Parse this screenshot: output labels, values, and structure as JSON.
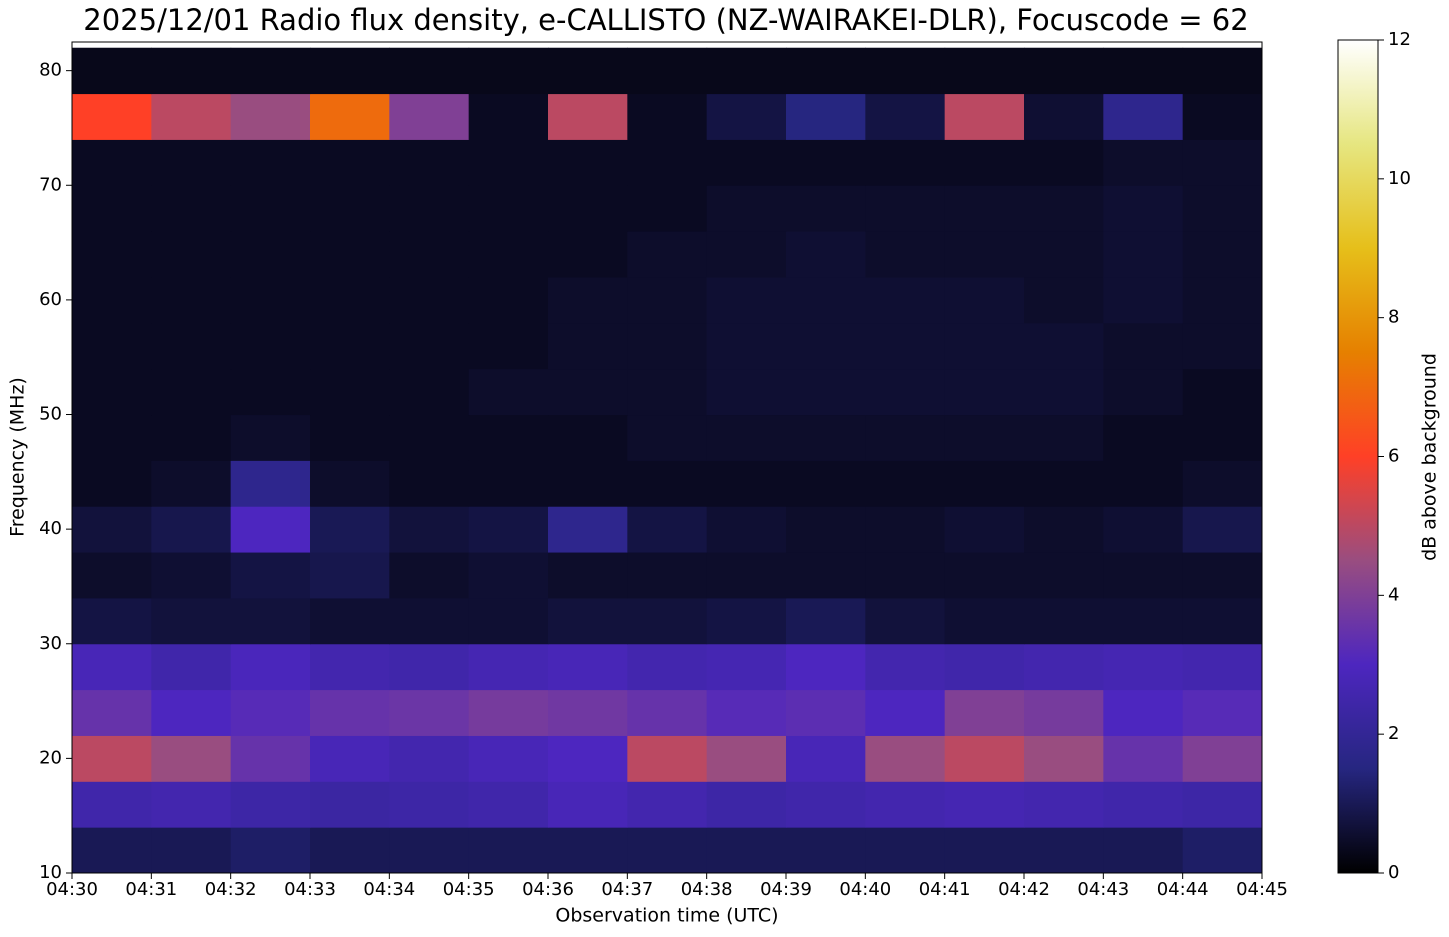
{
  "chart_data": {
    "type": "heatmap",
    "title": "2025/12/01 Radio flux density, e-CALLISTO (NZ-WAIRAKEI-DLR), Focuscode = 62",
    "xlabel": "Observation time (UTC)",
    "ylabel": "Frequency (MHz)",
    "colorbar_label": "dB above background",
    "x_bins": [
      "04:30",
      "04:31",
      "04:32",
      "04:33",
      "04:34",
      "04:35",
      "04:36",
      "04:37",
      "04:38",
      "04:39",
      "04:40",
      "04:41",
      "04:42",
      "04:43",
      "04:44",
      "04:45"
    ],
    "y_bins": [
      10,
      14,
      18,
      22,
      26,
      30,
      34,
      38,
      42,
      46,
      50,
      54,
      58,
      62,
      66,
      70,
      74,
      78,
      82
    ],
    "xlim": [
      "04:30",
      "04:45"
    ],
    "xticks": [
      "04:30",
      "04:31",
      "04:32",
      "04:33",
      "04:34",
      "04:35",
      "04:36",
      "04:37",
      "04:38",
      "04:39",
      "04:40",
      "04:41",
      "04:42",
      "04:43",
      "04:44",
      "04:45"
    ],
    "ylim": [
      10,
      82.5
    ],
    "yticks": [
      10,
      20,
      30,
      40,
      50,
      60,
      70,
      80
    ],
    "clim": [
      0,
      12
    ],
    "cticks": [
      0,
      2,
      4,
      6,
      8,
      10,
      12
    ],
    "colormap": "CMRmap",
    "z": [
      [
        1,
        1,
        1.2,
        1,
        1,
        1,
        1,
        1,
        1,
        1,
        1,
        1,
        1,
        1,
        1.2
      ],
      [
        2.5,
        2.6,
        2.4,
        2.3,
        2.4,
        2.5,
        2.8,
        2.6,
        2.4,
        2.5,
        2.6,
        2.7,
        2.6,
        2.5,
        2.4
      ],
      [
        5,
        4.5,
        3.5,
        2.8,
        2.6,
        2.8,
        3,
        5,
        4.5,
        2.8,
        4.5,
        5,
        4.5,
        3.5,
        4
      ],
      [
        3.5,
        3,
        3.2,
        3.5,
        3.6,
        3.8,
        3.7,
        3.5,
        3.2,
        3.3,
        3,
        4,
        3.8,
        3,
        3.2
      ],
      [
        2.8,
        2.5,
        2.9,
        2.6,
        2.5,
        2.7,
        2.8,
        2.6,
        2.7,
        3,
        2.6,
        2.5,
        2.6,
        2.7,
        2.6
      ],
      [
        0.8,
        0.7,
        0.7,
        0.6,
        0.6,
        0.6,
        0.7,
        0.7,
        0.8,
        1,
        0.7,
        0.6,
        0.6,
        0.6,
        0.6
      ],
      [
        0.5,
        0.6,
        0.8,
        0.9,
        0.5,
        0.6,
        0.5,
        0.5,
        0.5,
        0.5,
        0.5,
        0.5,
        0.5,
        0.5,
        0.5
      ],
      [
        0.7,
        0.9,
        3,
        1,
        0.7,
        0.8,
        1.8,
        0.8,
        0.6,
        0.5,
        0.5,
        0.6,
        0.5,
        0.6,
        0.9
      ],
      [
        0.4,
        0.5,
        1.8,
        0.5,
        0.4,
        0.4,
        0.4,
        0.4,
        0.4,
        0.4,
        0.4,
        0.4,
        0.4,
        0.4,
        0.5
      ],
      [
        0.4,
        0.4,
        0.5,
        0.4,
        0.4,
        0.4,
        0.4,
        0.5,
        0.5,
        0.5,
        0.5,
        0.5,
        0.5,
        0.4,
        0.4
      ],
      [
        0.4,
        0.4,
        0.4,
        0.4,
        0.4,
        0.5,
        0.5,
        0.5,
        0.6,
        0.6,
        0.6,
        0.6,
        0.6,
        0.5,
        0.4
      ],
      [
        0.4,
        0.4,
        0.4,
        0.4,
        0.4,
        0.4,
        0.5,
        0.5,
        0.6,
        0.6,
        0.6,
        0.6,
        0.6,
        0.5,
        0.5
      ],
      [
        0.4,
        0.4,
        0.4,
        0.4,
        0.4,
        0.4,
        0.5,
        0.5,
        0.6,
        0.6,
        0.6,
        0.6,
        0.5,
        0.6,
        0.5
      ],
      [
        0.4,
        0.4,
        0.4,
        0.4,
        0.4,
        0.4,
        0.4,
        0.5,
        0.5,
        0.6,
        0.5,
        0.5,
        0.5,
        0.6,
        0.5
      ],
      [
        0.4,
        0.4,
        0.4,
        0.4,
        0.4,
        0.4,
        0.4,
        0.4,
        0.5,
        0.5,
        0.5,
        0.5,
        0.5,
        0.6,
        0.5
      ],
      [
        0.4,
        0.4,
        0.4,
        0.4,
        0.4,
        0.4,
        0.4,
        0.4,
        0.4,
        0.4,
        0.4,
        0.4,
        0.4,
        0.5,
        0.5
      ],
      [
        6,
        5,
        4.5,
        7,
        4,
        0.4,
        5,
        0.4,
        0.8,
        1.5,
        0.8,
        5,
        0.6,
        1.8,
        0.4
      ],
      [
        0.3,
        0.3,
        0.3,
        0.3,
        0.3,
        0.3,
        0.3,
        0.3,
        0.3,
        0.3,
        0.3,
        0.3,
        0.3,
        0.3,
        0.3
      ]
    ]
  }
}
